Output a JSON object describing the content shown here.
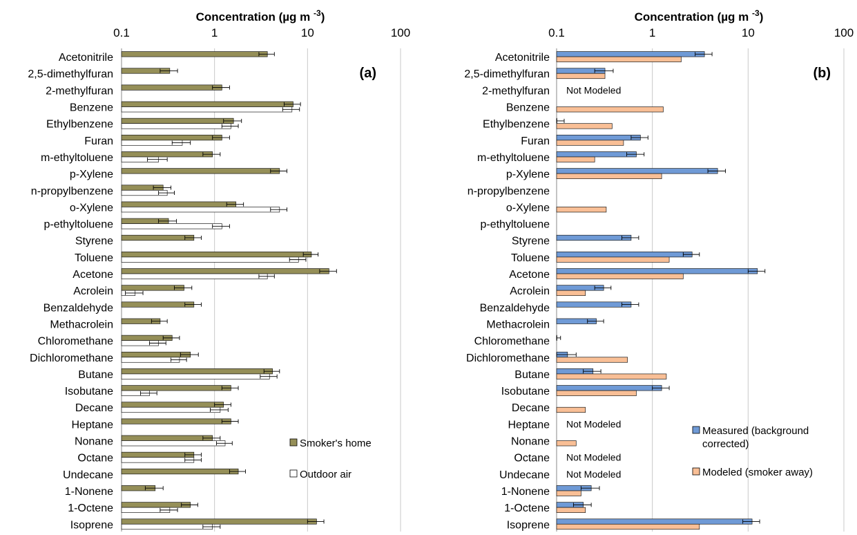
{
  "chart_data": [
    {
      "type": "bar",
      "orientation": "horizontal",
      "panel_label": "(a)",
      "xlabel": "Concentration (µg m-3)",
      "xscale": "log",
      "xlim": [
        0.1,
        100
      ],
      "xticks": [
        "0.1",
        "1",
        "10",
        "100"
      ],
      "grid": true,
      "legend_position": "bottom-right",
      "categories": [
        "Acetonitrile",
        "2,5-dimethylfuran",
        "2-methylfuran",
        "Benzene",
        "Ethylbenzene",
        "Furan",
        "m-ethyltoluene",
        "p-Xylene",
        "n-propylbenzene",
        "o-Xylene",
        "p-ethyltoluene",
        "Styrene",
        "Toluene",
        "Acetone",
        "Acrolein",
        "Benzaldehyde",
        "Methacrolein",
        "Chloromethane",
        "Dichloromethane",
        "Butane",
        "Isobutane",
        "Decane",
        "Heptane",
        "Nonane",
        "Octane",
        "Undecane",
        "1-Nonene",
        "1-Octene",
        "Isoprene"
      ],
      "series": [
        {
          "name": "Smoker's home",
          "color": "#958f58",
          "values": [
            3.7,
            0.33,
            1.2,
            7.0,
            1.6,
            1.2,
            0.95,
            5.0,
            0.28,
            1.7,
            0.32,
            0.6,
            11.0,
            17.0,
            0.47,
            0.6,
            0.26,
            0.35,
            0.55,
            4.2,
            1.5,
            1.25,
            1.5,
            0.95,
            0.6,
            1.8,
            0.23,
            0.55,
            12.5
          ],
          "errors": [
            0.7,
            0.07,
            0.25,
            1.4,
            0.35,
            0.25,
            0.2,
            1.0,
            0.06,
            0.35,
            0.07,
            0.12,
            2.0,
            3.5,
            0.1,
            0.12,
            0.05,
            0.07,
            0.12,
            0.8,
            0.3,
            0.25,
            0.3,
            0.2,
            0.12,
            0.35,
            0.05,
            0.11,
            2.5
          ]
        },
        {
          "name": "Outdoor air",
          "color": "#ffffff",
          "values": [
            null,
            null,
            null,
            6.8,
            1.5,
            0.45,
            0.25,
            null,
            0.31,
            5.0,
            1.2,
            null,
            8.0,
            3.7,
            0.14,
            null,
            null,
            0.25,
            0.42,
            3.9,
            0.2,
            1.15,
            null,
            1.3,
            0.6,
            null,
            null,
            0.33,
            0.95
          ],
          "errors": [
            null,
            null,
            null,
            1.4,
            0.3,
            0.1,
            0.06,
            null,
            0.06,
            1.0,
            0.25,
            null,
            1.6,
            0.7,
            0.03,
            null,
            null,
            0.05,
            0.08,
            0.8,
            0.04,
            0.25,
            null,
            0.25,
            0.12,
            null,
            null,
            0.07,
            0.2
          ]
        }
      ]
    },
    {
      "type": "bar",
      "orientation": "horizontal",
      "panel_label": "(b)",
      "xlabel": "Concentration (µg m-3)",
      "xscale": "log",
      "xlim": [
        0.1,
        100
      ],
      "xticks": [
        "0.1",
        "1",
        "10",
        "100"
      ],
      "grid": true,
      "legend_position": "bottom-right",
      "categories": [
        "Acetonitrile",
        "2,5-dimethylfuran",
        "2-methylfuran",
        "Benzene",
        "Ethylbenzene",
        "Furan",
        "m-ethyltoluene",
        "p-Xylene",
        "n-propylbenzene",
        "o-Xylene",
        "p-ethyltoluene",
        "Styrene",
        "Toluene",
        "Acetone",
        "Acrolein",
        "Benzaldehyde",
        "Methacrolein",
        "Chloromethane",
        "Dichloromethane",
        "Butane",
        "Isobutane",
        "Decane",
        "Heptane",
        "Nonane",
        "Octane",
        "Undecane",
        "1-Nonene",
        "1-Octene",
        "Isoprene"
      ],
      "series": [
        {
          "name": "Measured (background corrected)",
          "color": "#6f9ad6",
          "values": [
            3.5,
            0.32,
            null,
            null,
            0.1,
            0.75,
            0.68,
            4.8,
            null,
            null,
            null,
            0.6,
            2.6,
            12.5,
            0.31,
            0.6,
            0.26,
            0.1,
            0.13,
            0.24,
            1.25,
            null,
            null,
            null,
            null,
            null,
            0.23,
            0.19,
            11.0
          ],
          "errors": [
            0.7,
            0.07,
            null,
            null,
            0.02,
            0.15,
            0.14,
            1.0,
            null,
            null,
            null,
            0.12,
            0.5,
            2.5,
            0.06,
            0.12,
            0.05,
            0.01,
            0.03,
            0.05,
            0.25,
            null,
            null,
            null,
            null,
            null,
            0.05,
            0.04,
            2.2
          ]
        },
        {
          "name": "Modeled (smoker away)",
          "color": "#f9bf96",
          "values": [
            2.0,
            0.32,
            null,
            1.3,
            0.38,
            0.5,
            0.25,
            1.25,
            null,
            0.33,
            null,
            null,
            1.5,
            2.1,
            0.2,
            null,
            null,
            null,
            0.55,
            1.4,
            0.68,
            0.2,
            null,
            0.16,
            null,
            null,
            0.18,
            0.2,
            3.1
          ],
          "errors": null
        }
      ],
      "annotations": [
        {
          "category": "2-methylfuran",
          "text": "Not Modeled"
        },
        {
          "category": "Heptane",
          "text": "Not Modeled"
        },
        {
          "category": "Octane",
          "text": "Not Modeled"
        },
        {
          "category": "Undecane",
          "text": "Not Modeled"
        }
      ]
    }
  ],
  "legend_a": [
    "Smoker's home",
    "Outdoor air"
  ],
  "legend_b": [
    "Measured (background",
    "corrected)",
    "Modeled (smoker away)"
  ]
}
